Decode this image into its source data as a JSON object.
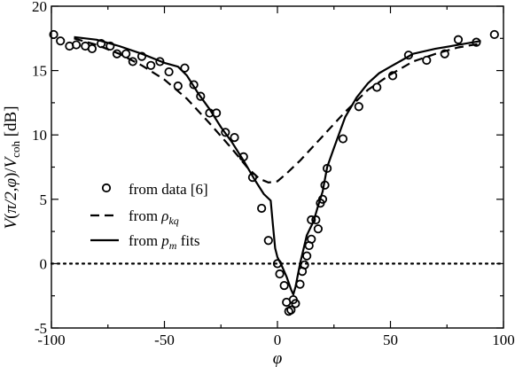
{
  "chart_data": {
    "type": "line",
    "xlabel": "φ",
    "ylabel": "V(π/2,φ)/V_coh [dB]",
    "xlim": [
      -100,
      100
    ],
    "ylim": [
      -5,
      20
    ],
    "xticks": [
      -100,
      -50,
      0,
      50,
      100
    ],
    "yticks": [
      -5,
      0,
      5,
      10,
      15,
      20
    ],
    "grid": false,
    "legend_position": "left-middle",
    "reference_line": {
      "y": 0,
      "style": "dotted"
    },
    "series": [
      {
        "name": "from data [6]",
        "legend_label": "from data [6]",
        "kind": "scatter",
        "marker": "open-circle",
        "points": [
          [
            -99,
            17.8
          ],
          [
            -96,
            17.3
          ],
          [
            -92,
            16.9
          ],
          [
            -89,
            17.0
          ],
          [
            -85,
            16.9
          ],
          [
            -82,
            16.7
          ],
          [
            -78,
            17.1
          ],
          [
            -74,
            16.9
          ],
          [
            -71,
            16.3
          ],
          [
            -67,
            16.3
          ],
          [
            -64,
            15.7
          ],
          [
            -60,
            16.1
          ],
          [
            -56,
            15.4
          ],
          [
            -52,
            15.7
          ],
          [
            -48,
            14.9
          ],
          [
            -44,
            13.8
          ],
          [
            -41,
            15.2
          ],
          [
            -37,
            13.9
          ],
          [
            -34,
            13.0
          ],
          [
            -30,
            11.7
          ],
          [
            -27,
            11.7
          ],
          [
            -23,
            10.2
          ],
          [
            -19,
            9.8
          ],
          [
            -15,
            8.3
          ],
          [
            -11,
            6.7
          ],
          [
            -7,
            4.3
          ],
          [
            -4,
            1.8
          ],
          [
            0,
            0.0
          ],
          [
            1,
            -0.8
          ],
          [
            3,
            -1.7
          ],
          [
            4,
            -3.0
          ],
          [
            5,
            -3.7
          ],
          [
            6,
            -3.6
          ],
          [
            7,
            -2.8
          ],
          [
            8,
            -3.1
          ],
          [
            10,
            -1.6
          ],
          [
            11,
            -0.6
          ],
          [
            12,
            -0.1
          ],
          [
            13,
            0.6
          ],
          [
            14,
            1.4
          ],
          [
            15,
            1.9
          ],
          [
            15,
            3.4
          ],
          [
            17,
            3.4
          ],
          [
            18,
            2.7
          ],
          [
            19,
            4.7
          ],
          [
            20,
            5.0
          ],
          [
            21,
            6.1
          ],
          [
            22,
            7.4
          ],
          [
            29,
            9.7
          ],
          [
            36,
            12.2
          ],
          [
            44,
            13.7
          ],
          [
            51,
            14.6
          ],
          [
            58,
            16.2
          ],
          [
            66,
            15.8
          ],
          [
            74,
            16.3
          ],
          [
            80,
            17.4
          ],
          [
            88,
            17.2
          ],
          [
            96,
            17.8
          ]
        ]
      },
      {
        "name": "from ρ_kq",
        "legend_label_main": "from ",
        "legend_label_symbol": "ρ",
        "legend_label_sub": "kq",
        "kind": "line",
        "dash": "dashed",
        "points": [
          [
            -90,
            17.5
          ],
          [
            -80,
            17.0
          ],
          [
            -70,
            16.3
          ],
          [
            -60,
            15.4
          ],
          [
            -50,
            14.3
          ],
          [
            -40,
            12.8
          ],
          [
            -30,
            10.9
          ],
          [
            -20,
            8.9
          ],
          [
            -13,
            7.4
          ],
          [
            -8,
            6.6
          ],
          [
            -4,
            6.3
          ],
          [
            0,
            6.4
          ],
          [
            4,
            7.0
          ],
          [
            10,
            8.0
          ],
          [
            20,
            9.9
          ],
          [
            30,
            11.8
          ],
          [
            40,
            13.5
          ],
          [
            50,
            14.7
          ],
          [
            60,
            15.7
          ],
          [
            70,
            16.3
          ],
          [
            80,
            16.8
          ],
          [
            90,
            17.1
          ]
        ]
      },
      {
        "name": "from p_m fits",
        "legend_label_main": "from ",
        "legend_label_symbol": "p",
        "legend_label_sub": "m",
        "legend_label_tail": " fits",
        "kind": "line",
        "dash": "solid",
        "points": [
          [
            -90,
            17.6
          ],
          [
            -80,
            17.4
          ],
          [
            -70,
            16.9
          ],
          [
            -60,
            16.3
          ],
          [
            -50,
            15.6
          ],
          [
            -44,
            15.3
          ],
          [
            -40,
            14.6
          ],
          [
            -35,
            13.2
          ],
          [
            -30,
            12.0
          ],
          [
            -25,
            10.6
          ],
          [
            -20,
            9.4
          ],
          [
            -15,
            8.0
          ],
          [
            -10,
            6.5
          ],
          [
            -6,
            5.4
          ],
          [
            -3,
            4.9
          ],
          [
            -2,
            3.0
          ],
          [
            -1,
            1.2
          ],
          [
            0,
            0.5
          ],
          [
            2,
            -0.2
          ],
          [
            4,
            -1.0
          ],
          [
            6,
            -2.0
          ],
          [
            7,
            -2.4
          ],
          [
            8,
            -1.8
          ],
          [
            10,
            0.0
          ],
          [
            13,
            2.2
          ],
          [
            16,
            3.3
          ],
          [
            18,
            4.5
          ],
          [
            20,
            5.6
          ],
          [
            22,
            7.5
          ],
          [
            25,
            9.0
          ],
          [
            30,
            11.4
          ],
          [
            35,
            12.9
          ],
          [
            40,
            14.0
          ],
          [
            45,
            14.8
          ],
          [
            50,
            15.3
          ],
          [
            55,
            15.8
          ],
          [
            60,
            16.3
          ],
          [
            70,
            16.7
          ],
          [
            80,
            17.0
          ],
          [
            90,
            17.3
          ]
        ]
      }
    ]
  }
}
